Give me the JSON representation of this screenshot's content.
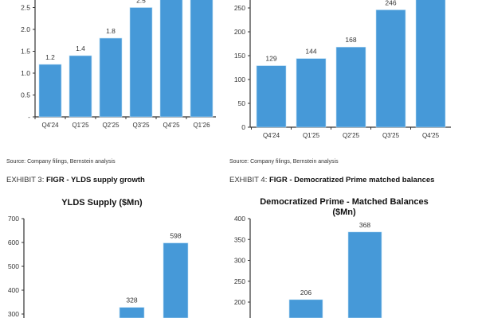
{
  "sources": [
    "Source: Company filings, Bernstein analysis",
    "Source: Company filings, Bernstein analysis"
  ],
  "exhibits": [
    {
      "label": "EXHIBIT 3:",
      "title": "FIGR - YLDS supply growth"
    },
    {
      "label": "EXHIBIT 4:",
      "title": "FIGR - Democratized Prime matched balances"
    }
  ],
  "chart_data": [
    {
      "type": "bar",
      "title": "",
      "categories": [
        "Q4'24",
        "Q1'25",
        "Q2'25",
        "Q3'25",
        "Q4'25",
        "Q1'26"
      ],
      "values": [
        1.2,
        1.4,
        1.8,
        2.5,
        null,
        null
      ],
      "value_labels": [
        "1.2",
        "1.4",
        "1.8",
        "2.5",
        "",
        ""
      ],
      "yticks": [
        "-",
        "0.5",
        "1.0",
        "1.5",
        "2.0",
        "2.5"
      ],
      "ylim": [
        0,
        2.6
      ],
      "color": "#4699d8"
    },
    {
      "type": "bar",
      "title": "",
      "categories": [
        "Q4'24",
        "Q1'25",
        "Q2'25",
        "Q3'25",
        "Q4'25"
      ],
      "values": [
        129,
        144,
        168,
        246,
        null
      ],
      "value_labels": [
        "129",
        "144",
        "168",
        "246",
        ""
      ],
      "yticks": [
        "0",
        "50",
        "100",
        "150",
        "200",
        "250"
      ],
      "ylim": [
        0,
        265
      ],
      "color": "#4699d8"
    },
    {
      "type": "bar",
      "title": "YLDS Supply ($Mn)",
      "categories": [
        "",
        "",
        "",
        ""
      ],
      "values": [
        null,
        null,
        328,
        598
      ],
      "value_labels": [
        "",
        "",
        "328",
        "598"
      ],
      "yticks": [
        "300",
        "400",
        "500",
        "600",
        "700"
      ],
      "ylim": [
        300,
        700
      ],
      "color": "#4699d8"
    },
    {
      "type": "bar",
      "title": "Democratized Prime - Matched Balances ($Mn)",
      "title_lines": [
        "Democratized Prime - Matched Balances",
        "($Mn)"
      ],
      "categories": [
        "",
        ""
      ],
      "values": [
        206,
        368
      ],
      "value_labels": [
        "206",
        "368"
      ],
      "yticks": [
        "200",
        "250",
        "300",
        "350",
        "400"
      ],
      "ylim": [
        200,
        400
      ],
      "color": "#4699d8"
    }
  ]
}
